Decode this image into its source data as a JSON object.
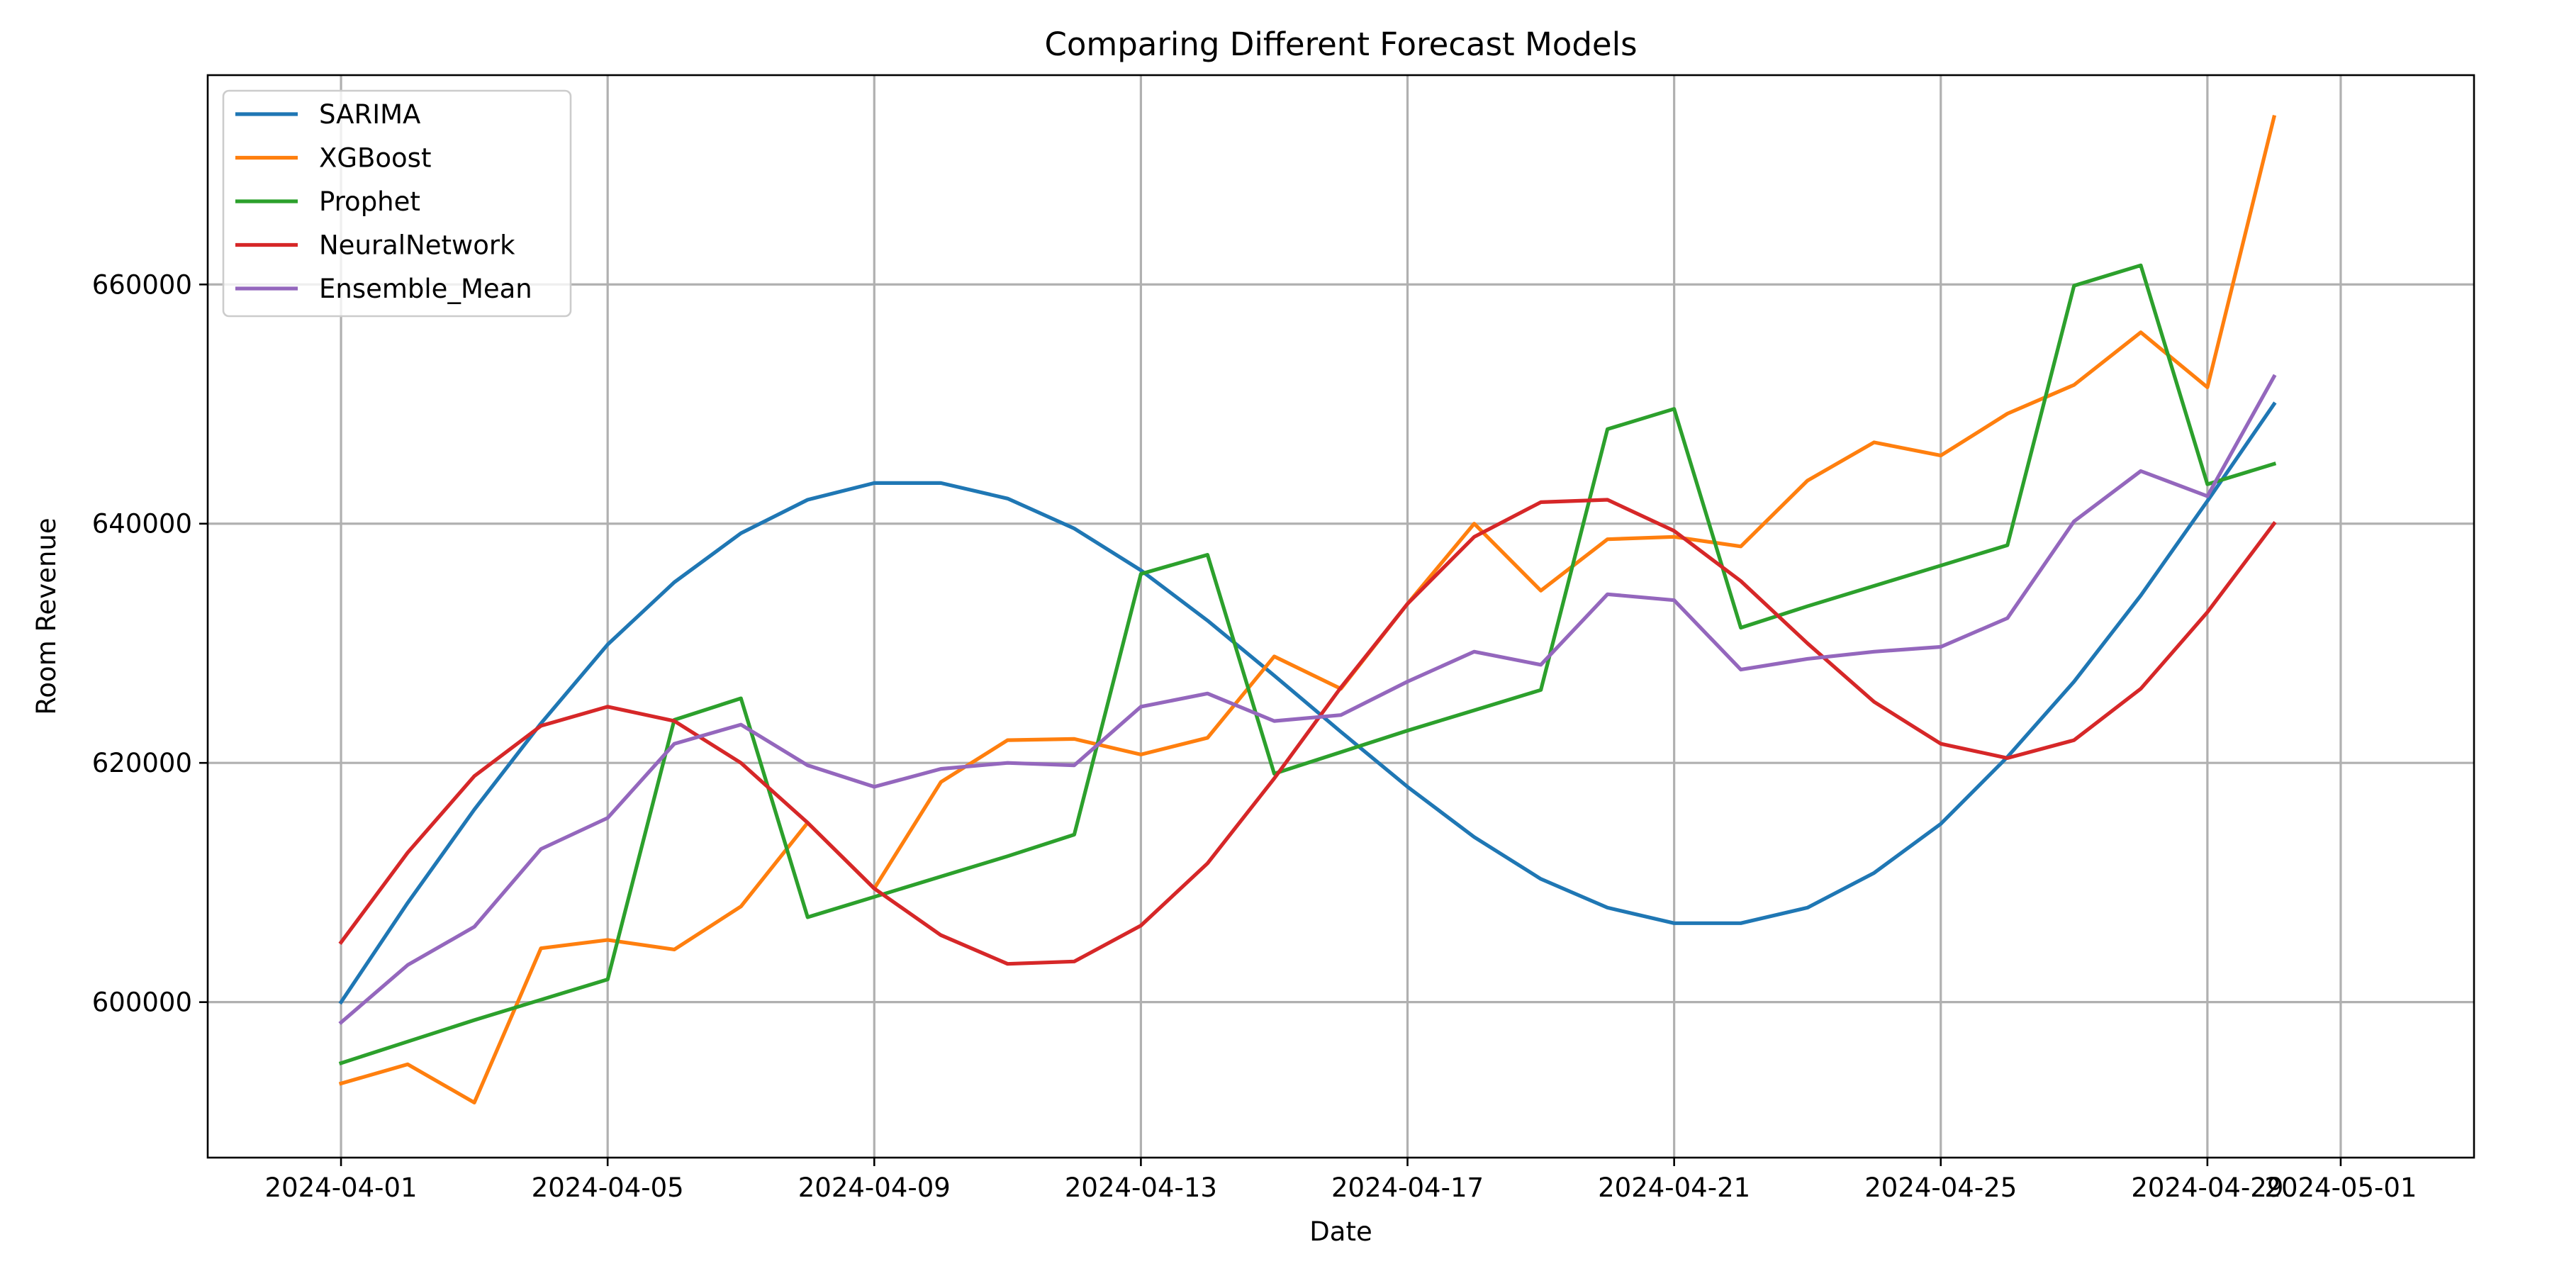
{
  "chart_data": {
    "type": "line",
    "title": "Comparing Different Forecast Models",
    "xlabel": "Date",
    "ylabel": "Room Revenue",
    "grid": true,
    "legend_position": "top-left",
    "x_start": "2024-04-01",
    "x_end": "2024-04-30",
    "xlim": [
      "2024-03-30",
      "2024-05-03"
    ],
    "ylim": [
      587000,
      677500
    ],
    "xticks": [
      "2024-04-01",
      "2024-04-05",
      "2024-04-09",
      "2024-04-13",
      "2024-04-17",
      "2024-04-21",
      "2024-04-25",
      "2024-04-29",
      "2024-05-01"
    ],
    "yticks": [
      600000,
      620000,
      640000,
      660000
    ],
    "series": [
      {
        "name": "SARIMA",
        "color": "#1f77b4",
        "values": [
          600000,
          608300,
          616100,
          623300,
          629900,
          635100,
          639200,
          642000,
          643400,
          643400,
          642100,
          639600,
          636100,
          631900,
          627300,
          622600,
          618000,
          613800,
          610300,
          607900,
          606600,
          606600,
          607900,
          610800,
          614900,
          620500,
          626800,
          634000,
          641900,
          650000
        ]
      },
      {
        "name": "XGBoost",
        "color": "#ff7f0e",
        "values": [
          593200,
          594800,
          591600,
          604500,
          605200,
          604400,
          608000,
          615000,
          609500,
          618400,
          621900,
          622000,
          620700,
          622100,
          628900,
          626200,
          633300,
          640000,
          634400,
          638700,
          638900,
          638100,
          643600,
          646800,
          645700,
          649200,
          651600,
          656000,
          651400,
          674000
        ]
      },
      {
        "name": "Prophet",
        "color": "#2ca02c",
        "values": [
          594900,
          596700,
          598500,
          600200,
          601900,
          623600,
          625400,
          607100,
          608800,
          610500,
          612200,
          614000,
          635800,
          637400,
          619100,
          620900,
          622700,
          624400,
          626100,
          647900,
          649600,
          631300,
          633100,
          634800,
          636500,
          638200,
          659900,
          661600,
          643300,
          645000
        ]
      },
      {
        "name": "NeuralNetwork",
        "color": "#d62728",
        "values": [
          605000,
          612500,
          618900,
          623100,
          624700,
          623500,
          620000,
          615000,
          609500,
          605600,
          603200,
          603400,
          606400,
          611600,
          618700,
          626300,
          633300,
          638900,
          641800,
          642000,
          639400,
          635200,
          630000,
          625100,
          621600,
          620400,
          621900,
          626200,
          632600,
          640000
        ]
      },
      {
        "name": "Ensemble_Mean",
        "color": "#9467bd",
        "values": [
          598300,
          603100,
          606300,
          612800,
          615400,
          621600,
          623200,
          619800,
          618000,
          619500,
          620000,
          619800,
          624700,
          625800,
          623500,
          624000,
          626800,
          629300,
          628200,
          634100,
          633600,
          627800,
          628700,
          629300,
          629700,
          632100,
          640200,
          644400,
          642300,
          652300
        ]
      }
    ]
  }
}
